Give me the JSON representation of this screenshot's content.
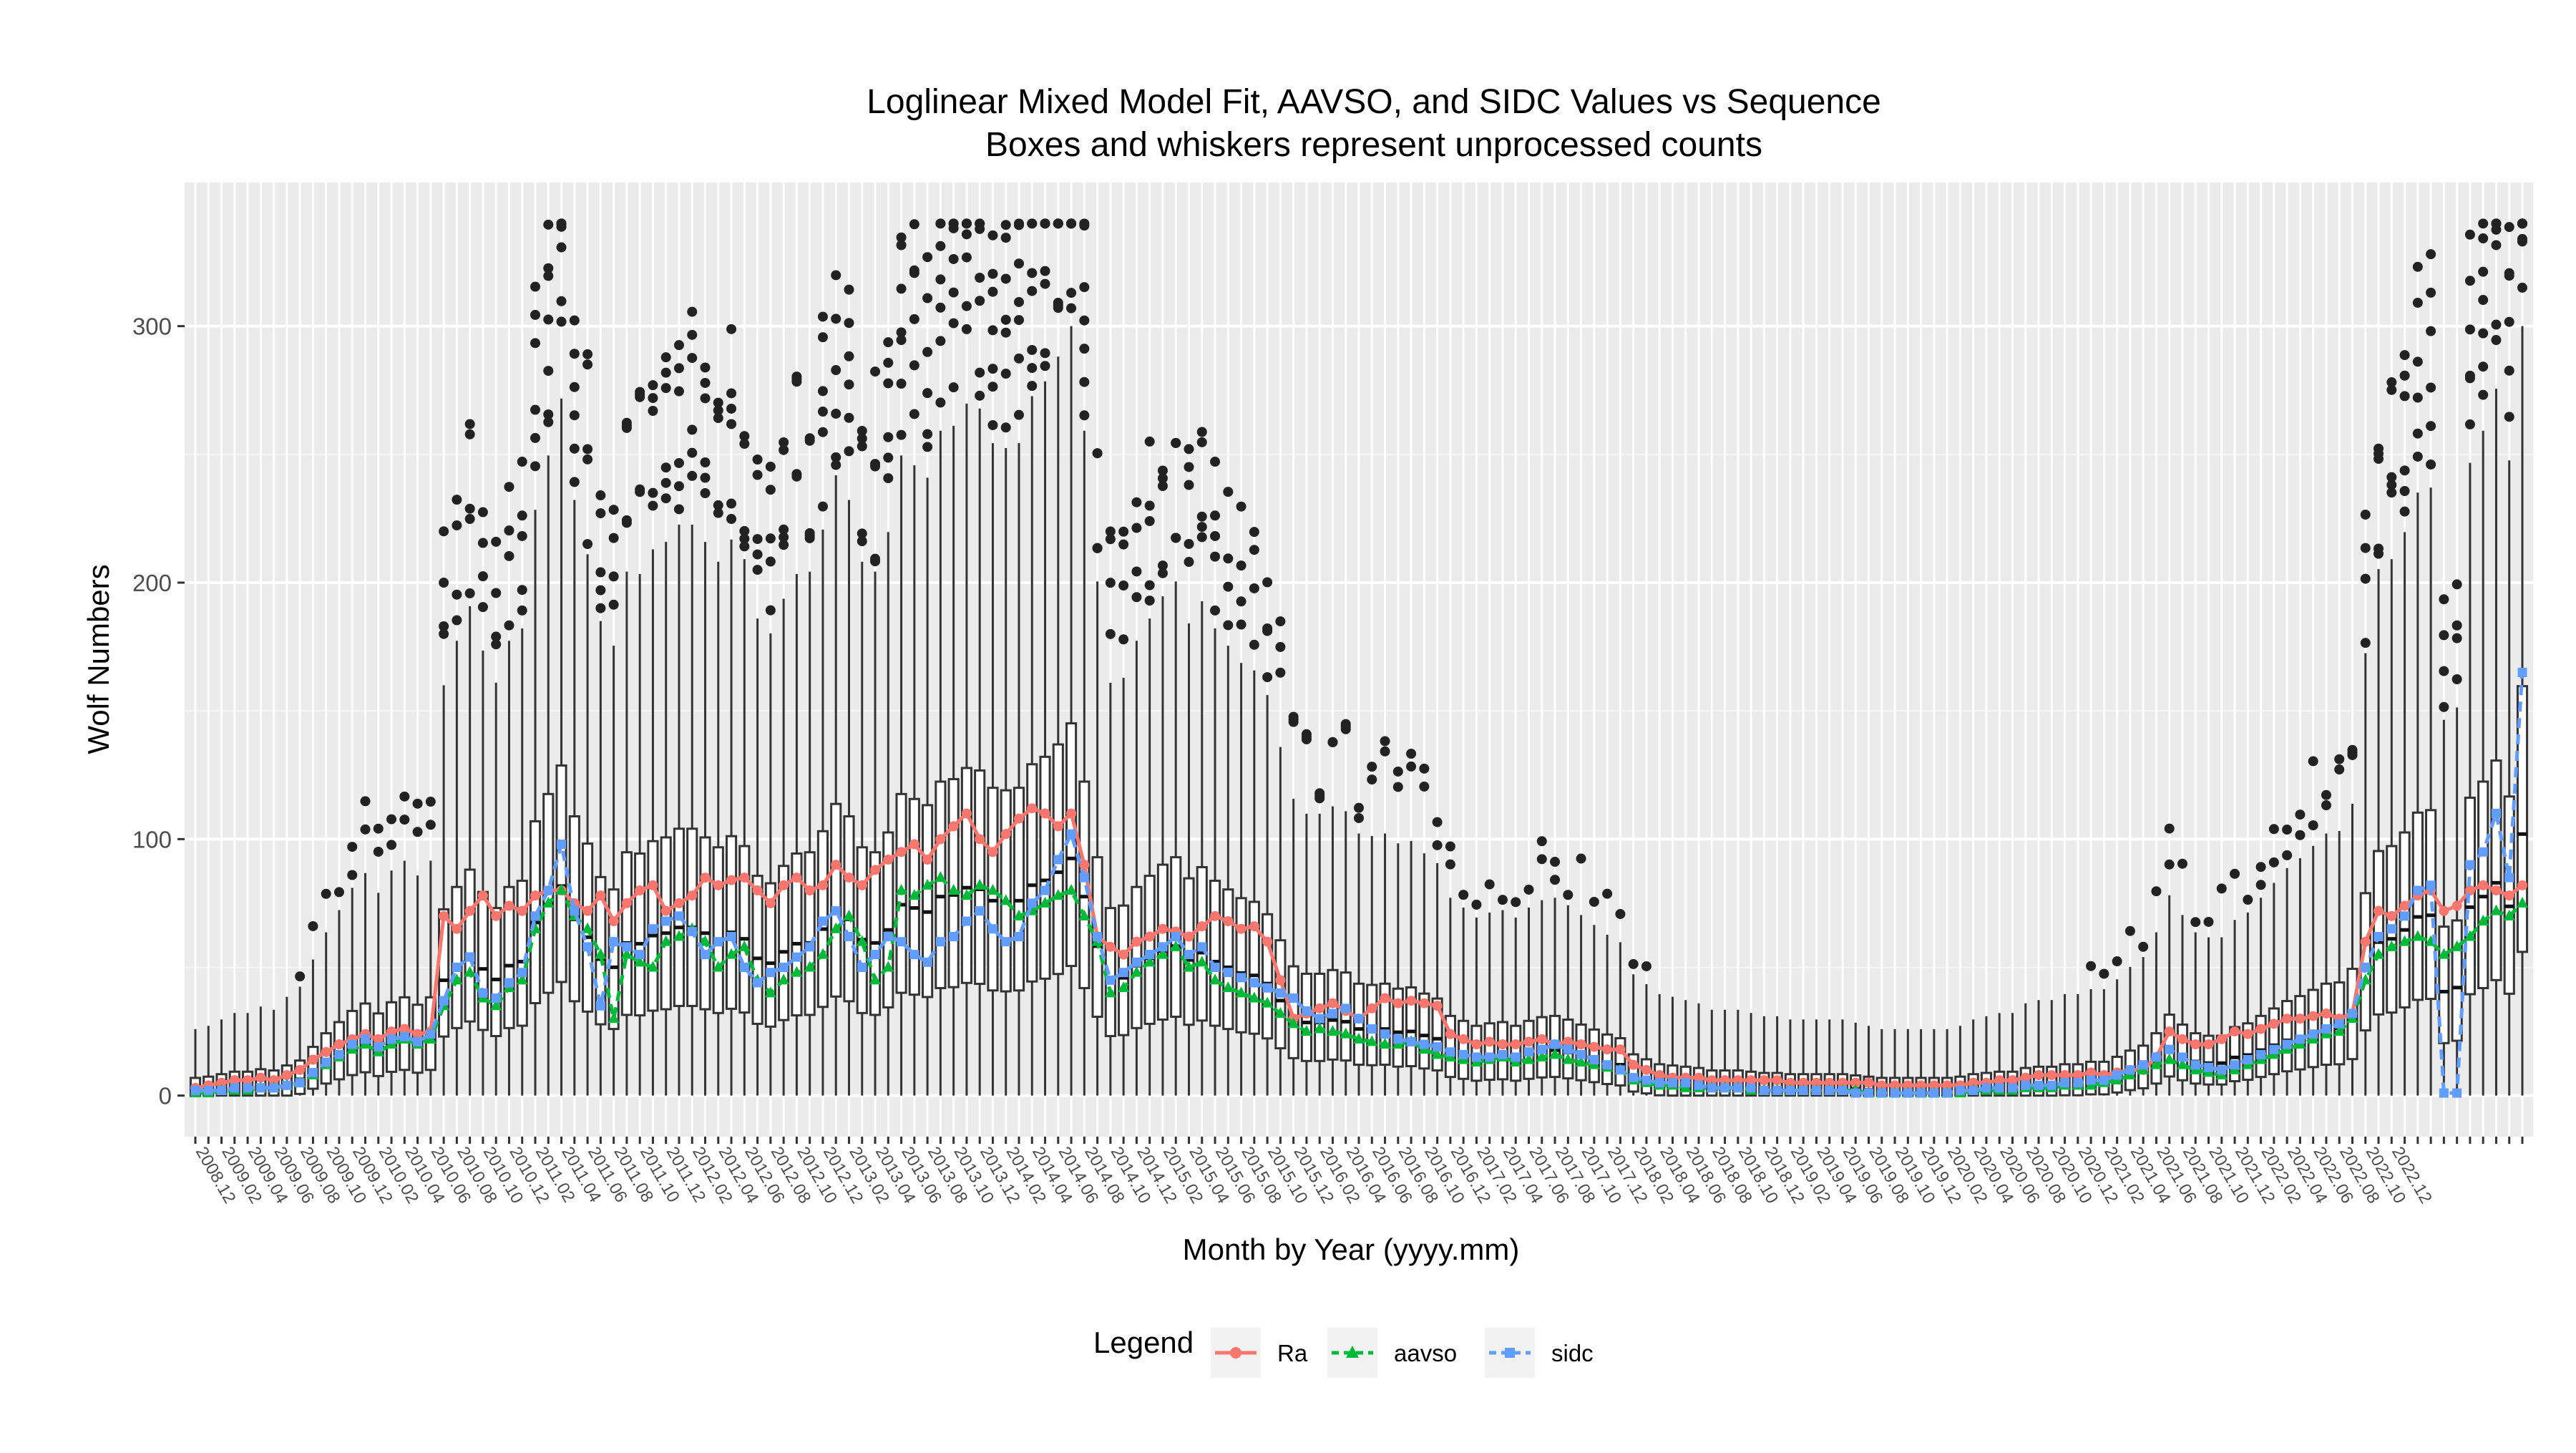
{
  "chart_data": {
    "type": "box",
    "title": "Loglinear Mixed Model Fit, AAVSO, and SIDC Values vs Sequence",
    "subtitle": "Boxes and whiskers represent unprocessed counts",
    "xlabel": "Month by Year (yyyy.mm)",
    "ylabel": "Wolf Numbers",
    "ylim": [
      -16,
      356
    ],
    "yticks": [
      0,
      100,
      200,
      300
    ],
    "grid": true,
    "legend_position": "bottom",
    "legend_title": "Legend",
    "x_start": "2008.12",
    "x_end": "2022.12",
    "x_tick_every_n_months": 2,
    "x_tick_labels": [
      "2008.12",
      "2009.02",
      "2009.04",
      "2009.06",
      "2009.08",
      "2009.10",
      "2009.12",
      "2010.02",
      "2010.04",
      "2010.06",
      "2010.08",
      "2010.10",
      "2010.12",
      "2011.02",
      "2011.04",
      "2011.06",
      "2011.08",
      "2011.10",
      "2011.12",
      "2012.02",
      "2012.04",
      "2012.06",
      "2012.08",
      "2012.10",
      "2012.12",
      "2013.02",
      "2013.04",
      "2013.06",
      "2013.08",
      "2013.10",
      "2013.12",
      "2014.02",
      "2014.04",
      "2014.06",
      "2014.08",
      "2014.10",
      "2014.12",
      "2015.02",
      "2015.04",
      "2015.06",
      "2015.08",
      "2015.10",
      "2015.12",
      "2016.02",
      "2016.04",
      "2016.06",
      "2016.08",
      "2016.10",
      "2016.12",
      "2017.02",
      "2017.04",
      "2017.06",
      "2017.08",
      "2017.10",
      "2017.12",
      "2018.02",
      "2018.04",
      "2018.06",
      "2018.08",
      "2018.10",
      "2018.12",
      "2019.02",
      "2019.04",
      "2019.06",
      "2019.08",
      "2019.10",
      "2019.12",
      "2020.02",
      "2020.04",
      "2020.06",
      "2020.08",
      "2020.10",
      "2020.12",
      "2021.02",
      "2021.04",
      "2021.06",
      "2021.08",
      "2021.10",
      "2021.12",
      "2022.02",
      "2022.04",
      "2022.06",
      "2022.08",
      "2022.10",
      "2022.12"
    ],
    "series": [
      {
        "name": "Ra",
        "color": "#F8766D",
        "marker": "circle",
        "linestyle": "solid",
        "values": [
          3,
          4,
          5,
          6,
          6,
          7,
          6,
          8,
          10,
          14,
          17,
          20,
          22,
          24,
          22,
          25,
          26,
          24,
          25,
          70,
          65,
          72,
          78,
          70,
          74,
          72,
          78,
          80,
          80,
          75,
          72,
          78,
          68,
          75,
          80,
          82,
          72,
          75,
          78,
          85,
          82,
          84,
          85,
          80,
          75,
          82,
          85,
          80,
          82,
          90,
          85,
          82,
          88,
          92,
          95,
          98,
          92,
          100,
          105,
          110,
          100,
          95,
          102,
          108,
          112,
          110,
          105,
          110,
          90,
          62,
          58,
          55,
          60,
          62,
          65,
          64,
          62,
          66,
          70,
          68,
          65,
          66,
          60,
          45,
          30,
          32,
          34,
          36,
          33,
          30,
          34,
          38,
          36,
          37,
          36,
          35,
          24,
          22,
          20,
          21,
          20,
          20,
          21,
          22,
          20,
          21,
          20,
          19,
          18,
          18,
          12,
          10,
          8,
          7,
          7,
          7,
          6,
          6,
          6,
          6,
          6,
          6,
          5,
          5,
          5,
          5,
          5,
          5,
          5,
          4,
          4,
          4,
          4,
          4,
          4,
          4,
          5,
          5,
          6,
          6,
          7,
          8,
          8,
          8,
          8,
          9,
          8,
          9,
          10,
          10,
          15,
          25,
          22,
          20,
          20,
          22,
          25,
          24,
          26,
          28,
          30,
          30,
          31,
          32,
          30,
          32,
          60,
          72,
          70,
          74,
          78,
          80,
          72,
          74,
          80,
          82,
          80,
          78,
          82
        ]
      },
      {
        "name": "aavso",
        "color": "#00BA38",
        "marker": "triangle",
        "linestyle": "dashed",
        "values": [
          1,
          1,
          2,
          2,
          2,
          3,
          3,
          4,
          5,
          8,
          12,
          15,
          18,
          20,
          17,
          20,
          22,
          20,
          22,
          35,
          45,
          48,
          38,
          35,
          42,
          45,
          65,
          75,
          80,
          70,
          65,
          55,
          30,
          55,
          52,
          50,
          60,
          62,
          65,
          60,
          50,
          55,
          58,
          45,
          40,
          45,
          48,
          50,
          55,
          65,
          70,
          60,
          45,
          50,
          80,
          78,
          82,
          85,
          80,
          78,
          82,
          80,
          76,
          70,
          72,
          75,
          78,
          80,
          70,
          60,
          40,
          42,
          48,
          52,
          55,
          58,
          50,
          52,
          45,
          42,
          40,
          38,
          36,
          32,
          28,
          25,
          26,
          25,
          24,
          22,
          21,
          20,
          20,
          21,
          18,
          16,
          15,
          14,
          13,
          14,
          15,
          13,
          14,
          15,
          16,
          14,
          13,
          12,
          11,
          10,
          6,
          5,
          4,
          4,
          3,
          3,
          3,
          3,
          3,
          2,
          2,
          2,
          2,
          2,
          2,
          2,
          2,
          2,
          1,
          1,
          1,
          1,
          1,
          1,
          1,
          1,
          2,
          2,
          2,
          2,
          3,
          3,
          3,
          4,
          4,
          4,
          5,
          6,
          8,
          10,
          12,
          14,
          12,
          10,
          9,
          8,
          10,
          12,
          14,
          16,
          18,
          20,
          22,
          24,
          25,
          30,
          45,
          55,
          58,
          60,
          62,
          60,
          55,
          58,
          62,
          68,
          72,
          70,
          75
        ]
      },
      {
        "name": "sidc",
        "color": "#619CFF",
        "marker": "square",
        "linestyle": "dashed",
        "values": [
          2,
          2,
          2,
          3,
          3,
          3,
          3,
          4,
          5,
          9,
          13,
          16,
          20,
          22,
          19,
          22,
          23,
          21,
          24,
          37,
          50,
          54,
          40,
          38,
          44,
          48,
          70,
          80,
          98,
          72,
          58,
          35,
          60,
          58,
          55,
          65,
          68,
          70,
          64,
          55,
          60,
          62,
          50,
          44,
          48,
          50,
          54,
          58,
          68,
          72,
          62,
          50,
          55,
          62,
          60,
          55,
          52,
          60,
          62,
          68,
          72,
          65,
          60,
          62,
          75,
          80,
          92,
          102,
          85,
          62,
          45,
          48,
          52,
          55,
          58,
          62,
          55,
          58,
          50,
          48,
          46,
          44,
          42,
          40,
          38,
          33,
          30,
          32,
          34,
          30,
          26,
          24,
          22,
          21,
          20,
          19,
          17,
          16,
          15,
          15,
          16,
          15,
          17,
          18,
          20,
          18,
          16,
          14,
          12,
          10,
          7,
          6,
          5,
          5,
          5,
          4,
          3,
          3,
          3,
          3,
          2,
          2,
          2,
          2,
          2,
          2,
          2,
          1,
          1,
          1,
          1,
          1,
          1,
          1,
          1,
          2,
          2,
          3,
          3,
          3,
          4,
          4,
          4,
          5,
          5,
          6,
          6,
          8,
          10,
          12,
          15,
          18,
          15,
          12,
          11,
          10,
          12,
          14,
          16,
          18,
          20,
          22,
          24,
          26,
          28,
          32,
          50,
          62,
          65,
          70,
          80,
          82,
          1,
          1,
          90,
          95,
          110,
          85,
          165
        ]
      }
    ]
  }
}
